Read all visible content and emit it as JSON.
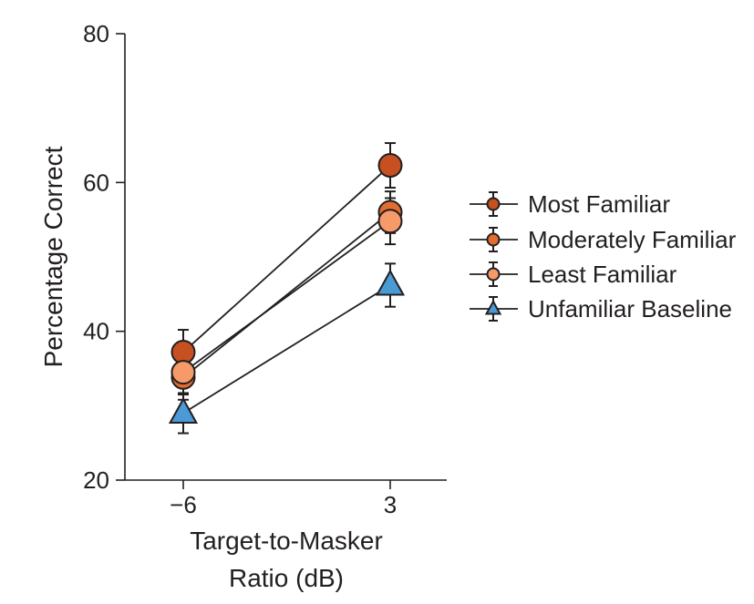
{
  "chart_data": {
    "type": "line",
    "title": "",
    "xlabel_lines": [
      "Target-to-Masker",
      "Ratio (dB)"
    ],
    "ylabel": "Percentage Correct",
    "x_categories": [
      "−6",
      "3"
    ],
    "ylim": [
      20,
      80
    ],
    "yticks": [
      "20",
      "40",
      "60",
      "80"
    ],
    "grid": false,
    "legend_position": "right",
    "series": [
      {
        "name": "Most Familiar",
        "marker": "circle",
        "color": "#c6501f",
        "values": [
          37.2,
          62.3
        ],
        "err": [
          3.0,
          3.0
        ]
      },
      {
        "name": "Moderately Familiar",
        "marker": "circle",
        "color": "#e26d30",
        "values": [
          33.8,
          56.0
        ],
        "err": [
          3.0,
          2.8
        ]
      },
      {
        "name": "Least Familiar",
        "marker": "circle",
        "color": "#f79a6a",
        "values": [
          34.5,
          54.8
        ],
        "err": [
          3.0,
          3.1
        ]
      },
      {
        "name": "Unfamiliar Baseline",
        "marker": "triangle",
        "color": "#4a9ad6",
        "values": [
          29.0,
          46.2
        ],
        "err": [
          2.7,
          2.9
        ]
      }
    ]
  }
}
